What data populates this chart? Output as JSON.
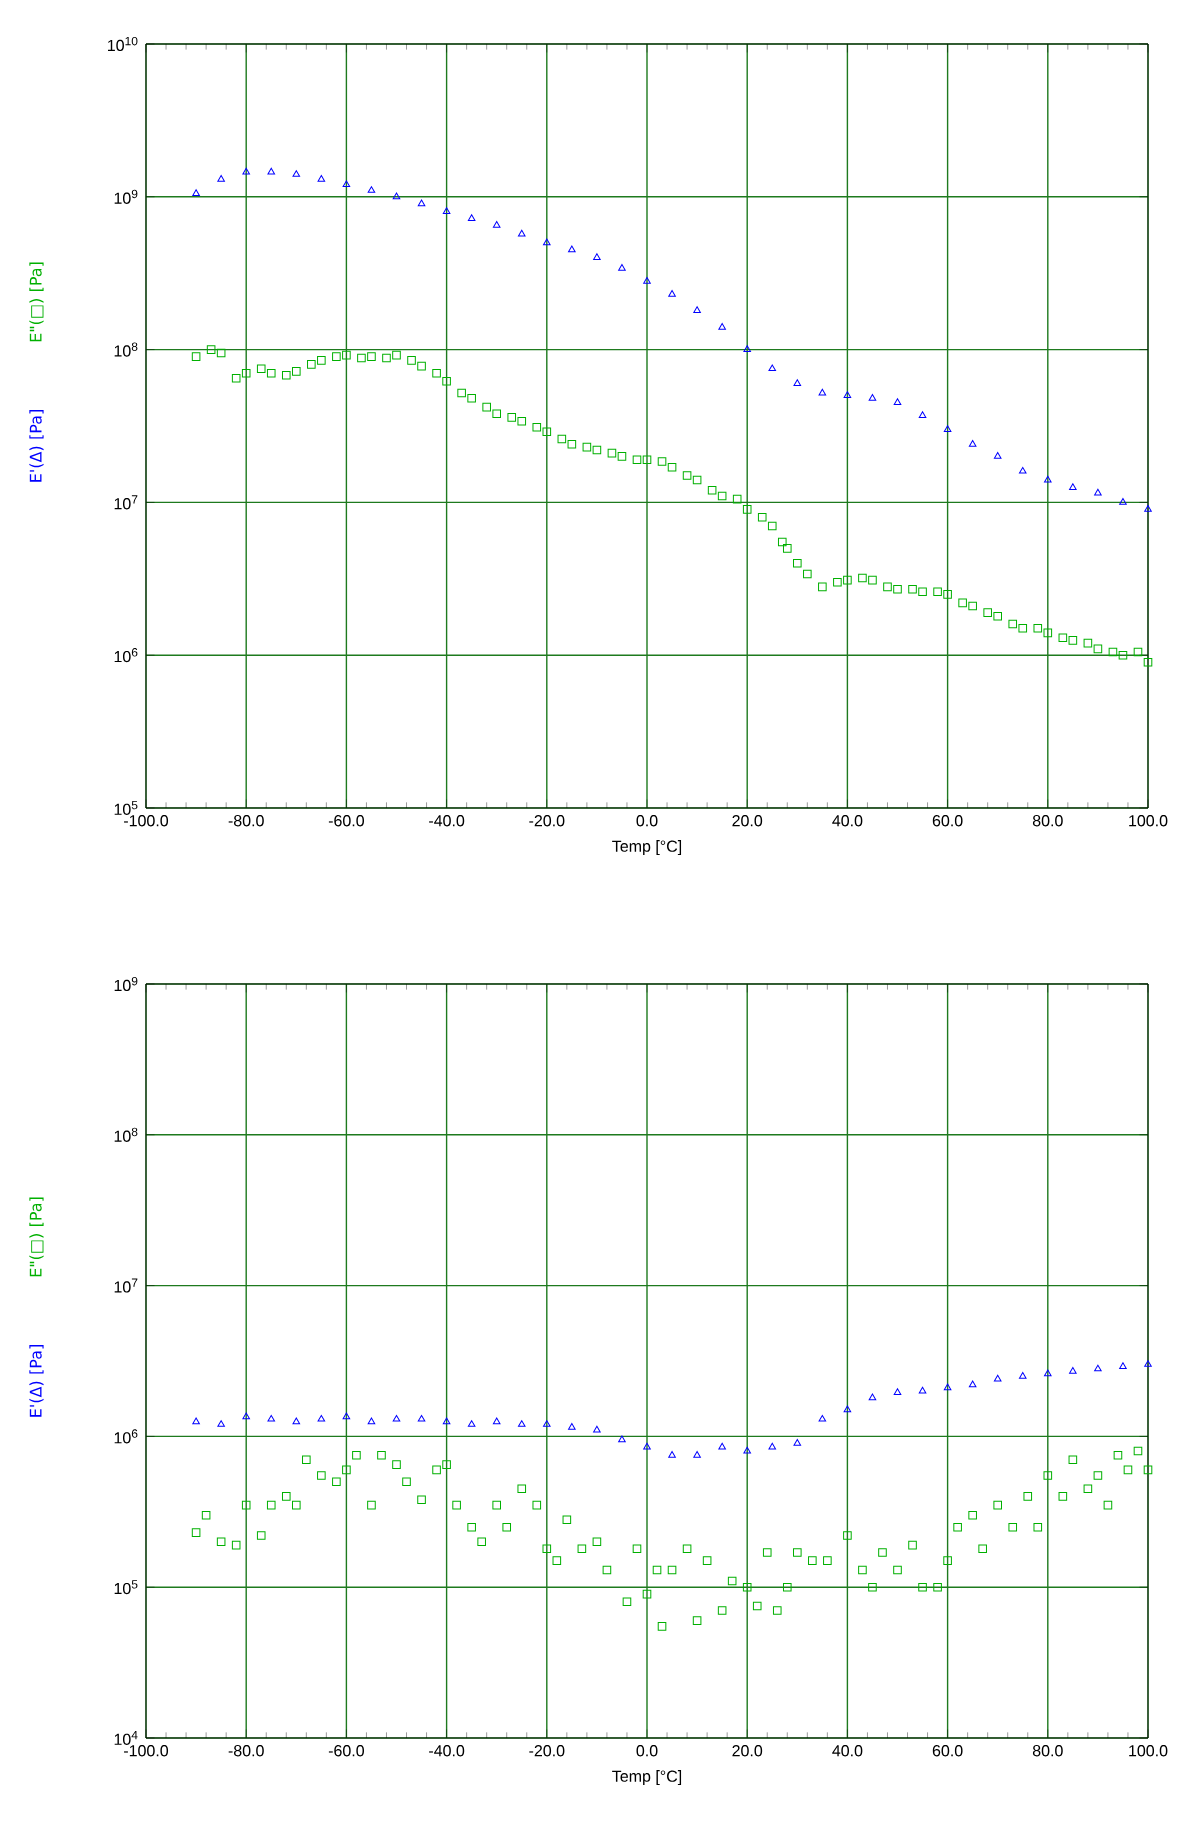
{
  "chart_data": [
    {
      "type": "scatter",
      "xlabel": "Temp [°C]",
      "log": "y",
      "grid": true,
      "legend": false,
      "xlim": [
        -100,
        100
      ],
      "ylim": [
        100000,
        10000000000
      ],
      "xticks": [
        {
          "value": -100,
          "label": "-100.0"
        },
        {
          "value": -80,
          "label": "-80.0"
        },
        {
          "value": -60,
          "label": "-60.0"
        },
        {
          "value": -40,
          "label": "-40.0"
        },
        {
          "value": -20,
          "label": "-20.0"
        },
        {
          "value": 0,
          "label": "0.0"
        },
        {
          "value": 20,
          "label": "20.0"
        },
        {
          "value": 40,
          "label": "40.0"
        },
        {
          "value": 60,
          "label": "60.0"
        },
        {
          "value": 80,
          "label": "80.0"
        },
        {
          "value": 100,
          "label": "100.0"
        }
      ],
      "yticks": [
        {
          "value": 100000,
          "label": "10$^{5}$"
        },
        {
          "value": 1000000,
          "label": "10$^{6}$"
        },
        {
          "value": 10000000,
          "label": "10$^{7}$"
        },
        {
          "value": 100000000,
          "label": "10$^{8}$"
        },
        {
          "value": 1000000000,
          "label": "10$^{9}$"
        },
        {
          "value": 10000000000,
          "label": "10$^{10}$"
        }
      ],
      "series": [
        {
          "name": "E'(Δ) [Pa]",
          "color": "#0000ff",
          "marker": "triangle",
          "x": [
            -90,
            -85,
            -80,
            -75,
            -70,
            -65,
            -60,
            -55,
            -50,
            -45,
            -40,
            -35,
            -30,
            -25,
            -20,
            -15,
            -10,
            -5,
            0,
            5,
            10,
            15,
            20,
            25,
            30,
            35,
            40,
            45,
            50,
            55,
            60,
            65,
            70,
            75,
            80,
            85,
            90,
            95,
            100
          ],
          "values": [
            1050000000,
            1300000000,
            1450000000,
            1450000000,
            1400000000,
            1300000000,
            1200000000,
            1100000000,
            1000000000,
            900000000,
            800000000,
            720000000,
            650000000,
            570000000,
            500000000,
            450000000,
            400000000,
            340000000,
            280000000,
            230000000,
            180000000,
            140000000,
            100000000,
            75000000,
            60000000,
            52000000,
            50000000,
            48000000,
            45000000,
            37000000,
            30000000,
            24000000,
            20000000,
            16000000,
            14000000,
            12500000,
            11500000,
            10000000,
            9000000
          ]
        },
        {
          "name": "E\"(□) [Pa]",
          "color": "#00b000",
          "marker": "square",
          "x": [
            -90,
            -87,
            -85,
            -82,
            -80,
            -77,
            -75,
            -72,
            -70,
            -67,
            -65,
            -62,
            -60,
            -57,
            -55,
            -52,
            -50,
            -47,
            -45,
            -42,
            -40,
            -37,
            -35,
            -32,
            -30,
            -27,
            -25,
            -22,
            -20,
            -17,
            -15,
            -12,
            -10,
            -7,
            -5,
            -2,
            0,
            3,
            5,
            8,
            10,
            13,
            15,
            18,
            20,
            23,
            25,
            27,
            28,
            30,
            32,
            35,
            38,
            40,
            43,
            45,
            48,
            50,
            53,
            55,
            58,
            60,
            63,
            65,
            68,
            70,
            73,
            75,
            78,
            80,
            83,
            85,
            88,
            90,
            93,
            95,
            98,
            100
          ],
          "values": [
            90000000,
            100000000,
            95000000,
            65000000,
            70000000,
            75000000,
            70000000,
            68000000,
            72000000,
            80000000,
            85000000,
            90000000,
            92000000,
            88000000,
            90000000,
            88000000,
            92000000,
            85000000,
            78000000,
            70000000,
            62000000,
            52000000,
            48000000,
            42000000,
            38000000,
            36000000,
            34000000,
            31000000,
            29000000,
            26000000,
            24000000,
            23000000,
            22000000,
            21000000,
            20000000,
            19000000,
            19000000,
            18500000,
            17000000,
            15000000,
            14000000,
            12000000,
            11000000,
            10500000,
            9000000,
            8000000,
            7000000,
            5500000,
            5000000,
            4000000,
            3400000,
            2800000,
            3000000,
            3100000,
            3200000,
            3100000,
            2800000,
            2700000,
            2700000,
            2600000,
            2600000,
            2500000,
            2200000,
            2100000,
            1900000,
            1800000,
            1600000,
            1500000,
            1500000,
            1400000,
            1300000,
            1250000,
            1200000,
            1100000,
            1050000,
            1000000,
            1050000,
            900000
          ]
        }
      ]
    },
    {
      "type": "scatter",
      "xlabel": "Temp [°C]",
      "log": "y",
      "grid": true,
      "legend": false,
      "xlim": [
        -100,
        100
      ],
      "ylim": [
        10000,
        1000000000
      ],
      "xticks": [
        {
          "value": -100,
          "label": "-100.0"
        },
        {
          "value": -80,
          "label": "-80.0"
        },
        {
          "value": -60,
          "label": "-60.0"
        },
        {
          "value": -40,
          "label": "-40.0"
        },
        {
          "value": -20,
          "label": "-20.0"
        },
        {
          "value": 0,
          "label": "0.0"
        },
        {
          "value": 20,
          "label": "20.0"
        },
        {
          "value": 40,
          "label": "40.0"
        },
        {
          "value": 60,
          "label": "60.0"
        },
        {
          "value": 80,
          "label": "80.0"
        },
        {
          "value": 100,
          "label": "100.0"
        }
      ],
      "yticks": [
        {
          "value": 10000,
          "label": "10$^{4}$"
        },
        {
          "value": 100000,
          "label": "10$^{5}$"
        },
        {
          "value": 1000000,
          "label": "10$^{6}$"
        },
        {
          "value": 10000000,
          "label": "10$^{7}$"
        },
        {
          "value": 100000000,
          "label": "10$^{8}$"
        },
        {
          "value": 1000000000,
          "label": "10$^{9}$"
        }
      ],
      "series": [
        {
          "name": "E'(Δ) [Pa]",
          "color": "#0000ff",
          "marker": "triangle",
          "x": [
            -90,
            -85,
            -80,
            -75,
            -70,
            -65,
            -60,
            -55,
            -50,
            -45,
            -40,
            -35,
            -30,
            -25,
            -20,
            -15,
            -10,
            -5,
            0,
            5,
            10,
            15,
            20,
            25,
            30,
            35,
            40,
            45,
            50,
            55,
            60,
            65,
            70,
            75,
            80,
            85,
            90,
            95,
            100
          ],
          "values": [
            1250000,
            1200000,
            1350000,
            1300000,
            1250000,
            1300000,
            1350000,
            1250000,
            1300000,
            1300000,
            1250000,
            1200000,
            1250000,
            1200000,
            1200000,
            1150000,
            1100000,
            950000,
            850000,
            750000,
            750000,
            850000,
            800000,
            850000,
            900000,
            1300000,
            1500000,
            1800000,
            1950000,
            2000000,
            2100000,
            2200000,
            2400000,
            2500000,
            2600000,
            2700000,
            2800000,
            2900000,
            3000000
          ]
        },
        {
          "name": "E\"(□) [Pa]",
          "color": "#00b000",
          "marker": "square",
          "x": [
            -90,
            -88,
            -85,
            -82,
            -80,
            -77,
            -75,
            -72,
            -70,
            -68,
            -65,
            -62,
            -60,
            -58,
            -55,
            -53,
            -50,
            -48,
            -45,
            -42,
            -40,
            -38,
            -35,
            -33,
            -30,
            -28,
            -25,
            -22,
            -20,
            -18,
            -16,
            -13,
            -10,
            -8,
            -4,
            -2,
            0,
            2,
            3,
            5,
            8,
            10,
            12,
            15,
            17,
            20,
            22,
            24,
            26,
            28,
            30,
            33,
            36,
            40,
            43,
            45,
            47,
            50,
            53,
            55,
            58,
            60,
            62,
            65,
            67,
            70,
            73,
            76,
            78,
            80,
            83,
            85,
            88,
            90,
            92,
            94,
            96,
            98,
            100
          ],
          "values": [
            230000,
            300000,
            200000,
            190000,
            350000,
            220000,
            350000,
            400000,
            350000,
            700000,
            550000,
            500000,
            600000,
            750000,
            350000,
            750000,
            650000,
            500000,
            380000,
            600000,
            650000,
            350000,
            250000,
            200000,
            350000,
            250000,
            450000,
            350000,
            180000,
            150000,
            280000,
            180000,
            200000,
            130000,
            80000,
            180000,
            90000,
            130000,
            55000,
            130000,
            180000,
            60000,
            150000,
            70000,
            110000,
            100000,
            75000,
            170000,
            70000,
            100000,
            170000,
            150000,
            150000,
            220000,
            130000,
            100000,
            170000,
            130000,
            190000,
            100000,
            100000,
            150000,
            250000,
            300000,
            180000,
            350000,
            250000,
            400000,
            250000,
            550000,
            400000,
            700000,
            450000,
            550000,
            350000,
            750000,
            600000,
            800000,
            600000
          ]
        }
      ]
    }
  ]
}
